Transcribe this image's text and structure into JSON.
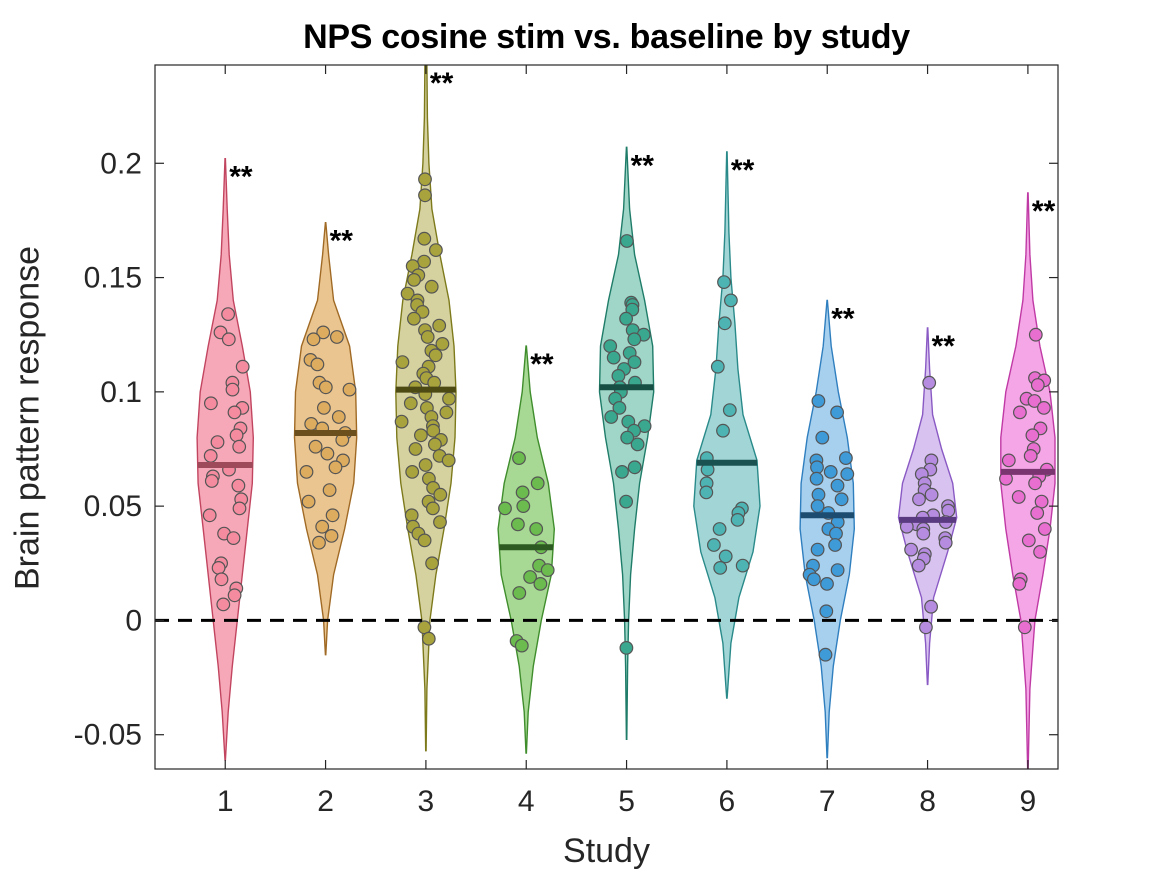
{
  "chart_data": {
    "type": "violin",
    "title": "NPS cosine stim vs. baseline by study",
    "xlabel": "Study",
    "ylabel": "Brain pattern response",
    "xlim": [
      0.3,
      9.3
    ],
    "ylim": [
      -0.065,
      0.243
    ],
    "x_ticks": [
      "1",
      "2",
      "3",
      "4",
      "5",
      "6",
      "7",
      "8",
      "9"
    ],
    "y_ticks": [
      {
        "value": -0.05,
        "label": "-0.05"
      },
      {
        "value": 0,
        "label": "0"
      },
      {
        "value": 0.05,
        "label": "0.05"
      },
      {
        "value": 0.1,
        "label": "0.1"
      },
      {
        "value": 0.15,
        "label": "0.15"
      },
      {
        "value": 0.2,
        "label": "0.2"
      }
    ],
    "reference_line": {
      "y": 0,
      "style": "dashed"
    },
    "studies": [
      {
        "study": 1,
        "mean": 0.068,
        "range": [
          -0.061,
          0.202
        ],
        "significance": "**",
        "color": "#f7a8b8",
        "edge": "#c24560",
        "dot": "#f48b9f",
        "mean_color": "#9e4a5a",
        "density": [
          [
            -0.061,
            0.002
          ],
          [
            -0.04,
            0.03
          ],
          [
            -0.02,
            0.07
          ],
          [
            0,
            0.12
          ],
          [
            0.02,
            0.17
          ],
          [
            0.04,
            0.22
          ],
          [
            0.06,
            0.27
          ],
          [
            0.08,
            0.28
          ],
          [
            0.1,
            0.25
          ],
          [
            0.12,
            0.17
          ],
          [
            0.14,
            0.08
          ],
          [
            0.16,
            0.04
          ],
          [
            0.18,
            0.02
          ],
          [
            0.202,
            0.002
          ]
        ],
        "points": [
          0.134,
          0.126,
          0.123,
          0.111,
          0.104,
          0.101,
          0.095,
          0.093,
          0.091,
          0.084,
          0.081,
          0.078,
          0.076,
          0.072,
          0.066,
          0.063,
          0.061,
          0.059,
          0.053,
          0.049,
          0.046,
          0.038,
          0.036,
          0.025,
          0.023,
          0.018,
          0.014,
          0.011,
          0.007
        ]
      },
      {
        "study": 2,
        "mean": 0.082,
        "range": [
          -0.015,
          0.174
        ],
        "significance": "**",
        "color": "#eac590",
        "edge": "#a06a25",
        "dot": "#deac5f",
        "mean_color": "#6b4f1c",
        "density": [
          [
            -0.015,
            0.002
          ],
          [
            0,
            0.02
          ],
          [
            0.02,
            0.08
          ],
          [
            0.04,
            0.19
          ],
          [
            0.06,
            0.28
          ],
          [
            0.08,
            0.31
          ],
          [
            0.1,
            0.3
          ],
          [
            0.12,
            0.24
          ],
          [
            0.14,
            0.08
          ],
          [
            0.16,
            0.03
          ],
          [
            0.174,
            0.002
          ]
        ],
        "points": [
          0.126,
          0.124,
          0.123,
          0.114,
          0.112,
          0.104,
          0.102,
          0.101,
          0.093,
          0.089,
          0.086,
          0.084,
          0.082,
          0.079,
          0.076,
          0.073,
          0.07,
          0.067,
          0.065,
          0.057,
          0.052,
          0.046,
          0.041,
          0.037,
          0.034
        ]
      },
      {
        "study": 3,
        "mean": 0.101,
        "range": [
          -0.057,
          0.243
        ],
        "significance": "**",
        "color": "#d6d2a0",
        "edge": "#7d7a1c",
        "dot": "#a8a33c",
        "mean_color": "#4d4a14",
        "density": [
          [
            -0.057,
            0.002
          ],
          [
            -0.03,
            0.01
          ],
          [
            0,
            0.04
          ],
          [
            0.02,
            0.1
          ],
          [
            0.04,
            0.18
          ],
          [
            0.06,
            0.25
          ],
          [
            0.08,
            0.29
          ],
          [
            0.1,
            0.3
          ],
          [
            0.12,
            0.28
          ],
          [
            0.14,
            0.23
          ],
          [
            0.16,
            0.14
          ],
          [
            0.18,
            0.06
          ],
          [
            0.2,
            0.03
          ],
          [
            0.22,
            0.015
          ],
          [
            0.243,
            0.01
          ]
        ],
        "points": [
          0.193,
          0.186,
          0.167,
          0.162,
          0.157,
          0.155,
          0.151,
          0.149,
          0.146,
          0.143,
          0.14,
          0.138,
          0.135,
          0.132,
          0.129,
          0.127,
          0.124,
          0.121,
          0.118,
          0.116,
          0.113,
          0.111,
          0.108,
          0.106,
          0.104,
          0.102,
          0.099,
          0.097,
          0.095,
          0.093,
          0.091,
          0.089,
          0.087,
          0.085,
          0.083,
          0.081,
          0.079,
          0.077,
          0.075,
          0.072,
          0.07,
          0.068,
          0.065,
          0.062,
          0.058,
          0.055,
          0.052,
          0.049,
          0.046,
          0.043,
          0.041,
          0.038,
          0.035,
          0.025,
          -0.003,
          -0.008
        ]
      },
      {
        "study": 4,
        "mean": 0.032,
        "range": [
          -0.058,
          0.12
        ],
        "significance": "**",
        "color": "#a8d994",
        "edge": "#3f8d2c",
        "dot": "#6bbb4f",
        "mean_color": "#2c5a20",
        "density": [
          [
            -0.058,
            0.002
          ],
          [
            -0.04,
            0.02
          ],
          [
            -0.02,
            0.07
          ],
          [
            0,
            0.15
          ],
          [
            0.02,
            0.25
          ],
          [
            0.04,
            0.28
          ],
          [
            0.06,
            0.22
          ],
          [
            0.08,
            0.11
          ],
          [
            0.1,
            0.04
          ],
          [
            0.12,
            0.002
          ]
        ],
        "points": [
          0.071,
          0.06,
          0.056,
          0.05,
          0.049,
          0.042,
          0.04,
          0.032,
          0.024,
          0.022,
          0.019,
          0.016,
          0.012,
          -0.009,
          -0.011
        ]
      },
      {
        "study": 5,
        "mean": 0.102,
        "range": [
          -0.052,
          0.207
        ],
        "significance": "**",
        "color": "#9fd6c8",
        "edge": "#1f7c68",
        "dot": "#3aa88f",
        "mean_color": "#174f44",
        "density": [
          [
            -0.052,
            0.002
          ],
          [
            -0.02,
            0.01
          ],
          [
            0,
            0.02
          ],
          [
            0.02,
            0.04
          ],
          [
            0.04,
            0.08
          ],
          [
            0.06,
            0.13
          ],
          [
            0.08,
            0.21
          ],
          [
            0.1,
            0.27
          ],
          [
            0.12,
            0.26
          ],
          [
            0.14,
            0.18
          ],
          [
            0.16,
            0.08
          ],
          [
            0.18,
            0.03
          ],
          [
            0.207,
            0.002
          ]
        ],
        "points": [
          0.166,
          0.139,
          0.138,
          0.136,
          0.132,
          0.127,
          0.125,
          0.123,
          0.12,
          0.117,
          0.115,
          0.113,
          0.11,
          0.107,
          0.104,
          0.102,
          0.1,
          0.097,
          0.093,
          0.089,
          0.087,
          0.085,
          0.083,
          0.08,
          0.077,
          0.067,
          0.065,
          0.052,
          -0.012
        ]
      },
      {
        "study": 6,
        "mean": 0.069,
        "range": [
          -0.034,
          0.205
        ],
        "significance": "**",
        "color": "#a2d6d6",
        "edge": "#2a8a8a",
        "dot": "#4db3b3",
        "mean_color": "#1a5252",
        "density": [
          [
            -0.034,
            0.002
          ],
          [
            -0.01,
            0.04
          ],
          [
            0.01,
            0.12
          ],
          [
            0.03,
            0.26
          ],
          [
            0.05,
            0.33
          ],
          [
            0.07,
            0.3
          ],
          [
            0.09,
            0.16
          ],
          [
            0.11,
            0.11
          ],
          [
            0.13,
            0.08
          ],
          [
            0.15,
            0.04
          ],
          [
            0.17,
            0.02
          ],
          [
            0.205,
            0.002
          ]
        ],
        "points": [
          0.148,
          0.14,
          0.13,
          0.111,
          0.092,
          0.083,
          0.071,
          0.066,
          0.06,
          0.056,
          0.049,
          0.047,
          0.044,
          0.04,
          0.033,
          0.028,
          0.024,
          0.023
        ]
      },
      {
        "study": 7,
        "mean": 0.046,
        "range": [
          -0.06,
          0.14
        ],
        "significance": "**",
        "color": "#a7cfee",
        "edge": "#2f7fbf",
        "dot": "#3f9ad8",
        "mean_color": "#1c4d70",
        "density": [
          [
            -0.06,
            0.002
          ],
          [
            -0.04,
            0.02
          ],
          [
            -0.02,
            0.06
          ],
          [
            0,
            0.13
          ],
          [
            0.02,
            0.22
          ],
          [
            0.04,
            0.27
          ],
          [
            0.06,
            0.26
          ],
          [
            0.08,
            0.2
          ],
          [
            0.1,
            0.11
          ],
          [
            0.12,
            0.04
          ],
          [
            0.14,
            0.002
          ]
        ],
        "points": [
          0.096,
          0.091,
          0.08,
          0.071,
          0.07,
          0.067,
          0.065,
          0.064,
          0.062,
          0.059,
          0.055,
          0.053,
          0.05,
          0.047,
          0.043,
          0.04,
          0.038,
          0.033,
          0.031,
          0.024,
          0.022,
          0.02,
          0.018,
          0.016,
          0.004,
          -0.015
        ]
      },
      {
        "study": 8,
        "mean": 0.044,
        "range": [
          -0.028,
          0.128
        ],
        "significance": "**",
        "color": "#d8c2f0",
        "edge": "#8a5ac4",
        "dot": "#b58ce0",
        "mean_color": "#5a3a80",
        "density": [
          [
            -0.028,
            0.002
          ],
          [
            -0.01,
            0.02
          ],
          [
            0.01,
            0.06
          ],
          [
            0.03,
            0.2
          ],
          [
            0.045,
            0.29
          ],
          [
            0.06,
            0.25
          ],
          [
            0.075,
            0.14
          ],
          [
            0.09,
            0.05
          ],
          [
            0.11,
            0.02
          ],
          [
            0.128,
            0.002
          ]
        ],
        "points": [
          0.104,
          0.07,
          0.066,
          0.064,
          0.06,
          0.057,
          0.055,
          0.053,
          0.05,
          0.048,
          0.046,
          0.045,
          0.043,
          0.042,
          0.041,
          0.04,
          0.038,
          0.036,
          0.034,
          0.031,
          0.029,
          0.027,
          0.024,
          0.006,
          -0.003
        ]
      },
      {
        "study": 9,
        "mean": 0.065,
        "range": [
          -0.066,
          0.187
        ],
        "significance": "**",
        "color": "#f5a6e6",
        "edge": "#c03aa5",
        "dot": "#e86fd0",
        "mean_color": "#7a3470",
        "density": [
          [
            -0.066,
            0.002
          ],
          [
            -0.03,
            0.02
          ],
          [
            0,
            0.07
          ],
          [
            0.02,
            0.15
          ],
          [
            0.04,
            0.22
          ],
          [
            0.06,
            0.27
          ],
          [
            0.08,
            0.27
          ],
          [
            0.1,
            0.22
          ],
          [
            0.12,
            0.12
          ],
          [
            0.14,
            0.05
          ],
          [
            0.16,
            0.02
          ],
          [
            0.187,
            0.002
          ]
        ],
        "points": [
          0.125,
          0.106,
          0.105,
          0.103,
          0.097,
          0.096,
          0.093,
          0.091,
          0.084,
          0.081,
          0.075,
          0.072,
          0.07,
          0.066,
          0.063,
          0.062,
          0.06,
          0.054,
          0.052,
          0.047,
          0.04,
          0.035,
          0.03,
          0.018,
          0.016,
          -0.003
        ]
      }
    ]
  }
}
